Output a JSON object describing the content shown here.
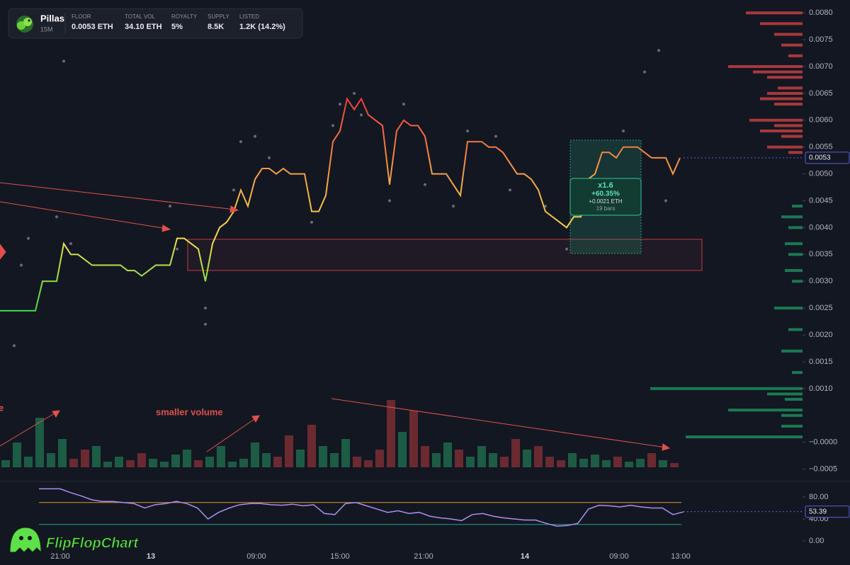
{
  "header": {
    "name": "Pillas",
    "interval": "15M",
    "stats": [
      {
        "label": "FLOOR",
        "value": "0.0053 ETH"
      },
      {
        "label": "TOTAL VOL",
        "value": "34.10 ETH"
      },
      {
        "label": "ROYALTY",
        "value": "5%"
      },
      {
        "label": "SUPPLY",
        "value": "8.5K"
      },
      {
        "label": "LISTED",
        "value": "1.2K (14.2%)"
      }
    ]
  },
  "logo": "FlipFlopChart",
  "chart_data": {
    "type": "line",
    "series": [
      {
        "name": "Price",
        "values": [
          0.00245,
          0.00245,
          0.00245,
          0.00245,
          0.00245,
          0.00245,
          0.003,
          0.003,
          0.003,
          0.0037,
          0.0035,
          0.0035,
          0.0034,
          0.0033,
          0.0033,
          0.0033,
          0.0033,
          0.0033,
          0.0032,
          0.0032,
          0.0031,
          0.0032,
          0.0033,
          0.0033,
          0.0033,
          0.0038,
          0.0038,
          0.0037,
          0.0036,
          0.003,
          0.0037,
          0.004,
          0.0041,
          0.0043,
          0.0047,
          0.0044,
          0.0049,
          0.0051,
          0.0051,
          0.005,
          0.0051,
          0.005,
          0.005,
          0.005,
          0.0043,
          0.0043,
          0.0046,
          0.0056,
          0.0058,
          0.0064,
          0.0062,
          0.0064,
          0.0061,
          0.006,
          0.0059,
          0.0048,
          0.0058,
          0.006,
          0.0059,
          0.0059,
          0.0057,
          0.005,
          0.005,
          0.005,
          0.0048,
          0.0046,
          0.0056,
          0.0056,
          0.0056,
          0.0055,
          0.0055,
          0.0054,
          0.0052,
          0.005,
          0.005,
          0.0049,
          0.0047,
          0.0043,
          0.0042,
          0.0041,
          0.004,
          0.0042,
          0.0042,
          0.0049,
          0.005,
          0.0054,
          0.0054,
          0.0053,
          0.0055,
          0.0055,
          0.0055,
          0.0054,
          0.0053,
          0.0053,
          0.0053,
          0.005,
          0.0053
        ]
      }
    ],
    "line_colors": [
      "#3fe03f",
      "#f4e04b",
      "#f59b42",
      "#ef3b3b"
    ],
    "trades": {
      "x": [
        2,
        3,
        4,
        8,
        9,
        10,
        24,
        25,
        29,
        29,
        33,
        34,
        36,
        38,
        44,
        47,
        48,
        50,
        51,
        55,
        57,
        60,
        64,
        66,
        70,
        72,
        77,
        80,
        84,
        88,
        91,
        93,
        94
      ],
      "values": [
        0.0018,
        0.0033,
        0.0038,
        0.0042,
        0.0071,
        0.0037,
        0.0044,
        0.0036,
        0.0025,
        0.0022,
        0.0047,
        0.0056,
        0.0057,
        0.0053,
        0.0041,
        0.0059,
        0.0063,
        0.0065,
        0.0061,
        0.0045,
        0.0063,
        0.0048,
        0.0044,
        0.0058,
        0.0057,
        0.0047,
        0.0044,
        0.0036,
        0.0048,
        0.0058,
        0.0069,
        0.0073,
        0.0045
      ]
    },
    "trade_color": "#8b8f9c",
    "ylim": [
      -0.00073,
      0.00824
    ],
    "yticks": [
      {
        "value": 0.008,
        "label": "0.0080"
      },
      {
        "value": 0.0075,
        "label": "0.0075"
      },
      {
        "value": 0.007,
        "label": "0.0070"
      },
      {
        "value": 0.0065,
        "label": "0.0065"
      },
      {
        "value": 0.006,
        "label": "0.0060"
      },
      {
        "value": 0.0055,
        "label": "0.0055"
      },
      {
        "value": 0.005,
        "label": "0.0050"
      },
      {
        "value": 0.0045,
        "label": "0.0045"
      },
      {
        "value": 0.004,
        "label": "0.0040"
      },
      {
        "value": 0.0035,
        "label": "0.0035"
      },
      {
        "value": 0.003,
        "label": "0.0030"
      },
      {
        "value": 0.0025,
        "label": "0.0025"
      },
      {
        "value": 0.002,
        "label": "0.0020"
      },
      {
        "value": 0.0015,
        "label": "0.0015"
      },
      {
        "value": 0.001,
        "label": "0.0010"
      },
      {
        "value": 0,
        "label": "−0.0000"
      },
      {
        "value": -0.0005,
        "label": "−0.0005"
      }
    ],
    "last_price": 0.0053,
    "x_labels": [
      "21:00",
      "13",
      "09:00",
      "15:00",
      "21:00",
      "14",
      "09:00",
      "13:00"
    ],
    "volume": {
      "values": [
        10,
        35,
        15,
        70,
        20,
        40,
        12,
        25,
        30,
        8,
        15,
        10,
        20,
        12,
        8,
        18,
        25,
        10,
        15,
        30,
        8,
        12,
        35,
        20,
        15,
        45,
        25,
        60,
        30,
        20,
        40,
        15,
        10,
        25,
        95,
        50,
        80,
        30,
        20,
        35,
        25,
        15,
        30,
        20,
        15,
        40,
        25,
        30,
        15,
        10,
        20,
        12,
        18,
        10,
        15,
        8,
        12,
        20,
        10,
        6
      ],
      "up_color": "#1d5c44",
      "down_color": "#6a2a30"
    },
    "volume_profile": {
      "prices": [
        0.008,
        0.0078,
        0.0076,
        0.0074,
        0.0072,
        0.007,
        0.0069,
        0.0068,
        0.0066,
        0.0065,
        0.0064,
        0.0063,
        0.006,
        0.0059,
        0.0058,
        0.0057,
        0.0055,
        0.0054,
        0.0044,
        0.0042,
        0.004,
        0.0037,
        0.0035,
        0.0032,
        0.003,
        0.0025,
        0.0021,
        0.0017,
        0.0013,
        0.001,
        0.0009,
        0.0008,
        0.0006,
        0.0005,
        0.0003,
        0.0001
      ],
      "values": [
        80,
        60,
        40,
        30,
        20,
        105,
        70,
        50,
        35,
        50,
        60,
        40,
        75,
        40,
        60,
        30,
        50,
        20,
        15,
        30,
        20,
        25,
        20,
        25,
        15,
        40,
        20,
        30,
        15,
        215,
        50,
        25,
        105,
        30,
        30,
        165
      ],
      "up_color": "#a8393c",
      "down_color": "#1a7a52"
    },
    "rsi": {
      "values": [
        95,
        95,
        95,
        88,
        82,
        75,
        72,
        72,
        70,
        68,
        60,
        66,
        68,
        72,
        68,
        60,
        40,
        52,
        60,
        66,
        68,
        68,
        66,
        65,
        67,
        64,
        66,
        50,
        48,
        68,
        70,
        64,
        58,
        52,
        55,
        50,
        52,
        45,
        42,
        40,
        37,
        48,
        50,
        45,
        42,
        40,
        38,
        38,
        32,
        27,
        28,
        32,
        58,
        65,
        64,
        62,
        65,
        62,
        60,
        60,
        48,
        53
      ],
      "color": "#a98ff0",
      "last": 53.39,
      "levels": [
        70,
        30
      ],
      "level_colors": [
        "#d99a2b",
        "#1fa38a"
      ],
      "ylim": [
        -14.2,
        105.8
      ],
      "yticks": [
        {
          "value": 80,
          "label": "80.00"
        },
        {
          "value": 40,
          "label": "40.00"
        },
        {
          "value": 0,
          "label": "0.00"
        }
      ]
    },
    "annotations": [
      "e",
      "smaller volume"
    ],
    "measure": {
      "multiplier": "x1.6",
      "percent": "+60.35%",
      "change": "+0.0021 ETH",
      "bars": "19 bars"
    }
  }
}
